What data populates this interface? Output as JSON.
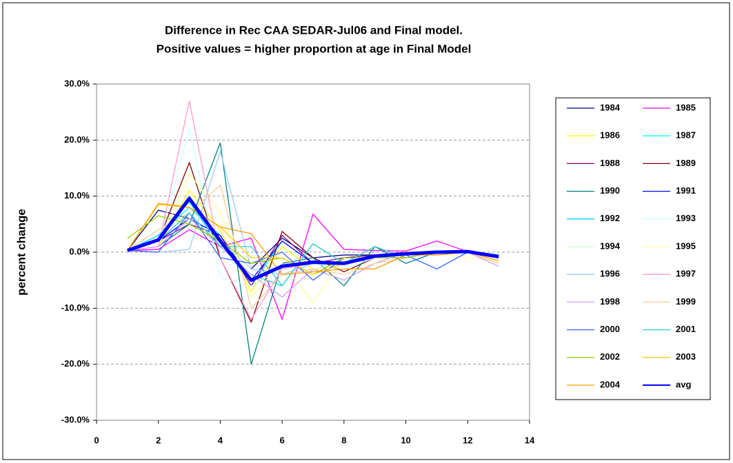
{
  "chart_data": {
    "type": "line",
    "title": "Difference in Rec CAA SEDAR-Jul06 and Final model.",
    "subtitle": "Positive values = higher proportion at age in Final Model",
    "y_label": "percent change",
    "x": [
      1,
      2,
      3,
      4,
      5,
      6,
      7,
      8,
      9,
      10,
      11,
      12,
      13
    ],
    "xlim": [
      0,
      14
    ],
    "xticks": [
      0,
      2,
      4,
      6,
      8,
      10,
      12,
      14
    ],
    "ylim": [
      -30,
      30
    ],
    "yticks": [
      {
        "value": -30,
        "label": "-30.0%"
      },
      {
        "value": -20,
        "label": "-20.0%"
      },
      {
        "value": -10,
        "label": "-10.0%"
      },
      {
        "value": 0,
        "label": "0.0%"
      },
      {
        "value": 10,
        "label": "10.0%"
      },
      {
        "value": 20,
        "label": "20.0%"
      },
      {
        "value": 30,
        "label": "30.0%"
      }
    ],
    "grid": true,
    "legend": "right",
    "series": [
      {
        "name": "1984",
        "color": "#000080",
        "values": [
          0.3,
          7.5,
          6,
          2,
          -3,
          2.5,
          -1,
          -0.5,
          -0.5,
          0,
          0,
          0.1,
          -0.5
        ]
      },
      {
        "name": "1985",
        "color": "#FF00FF",
        "values": [
          0.3,
          0.5,
          4,
          1,
          2.5,
          -12,
          6.8,
          0.5,
          0.3,
          0.2,
          2,
          0.1,
          -1
        ]
      },
      {
        "name": "1986",
        "color": "#FFFF00",
        "values": [
          0.3,
          1,
          11,
          4,
          -7,
          1,
          -3,
          -2,
          -1,
          0,
          0,
          0,
          -1
        ]
      },
      {
        "name": "1987",
        "color": "#00FFFF",
        "values": [
          0.3,
          3,
          8,
          3,
          -6,
          2,
          -2,
          -2,
          -1,
          0,
          0,
          0,
          -1
        ]
      },
      {
        "name": "1988",
        "color": "#800080",
        "values": [
          0.3,
          2,
          5,
          3,
          -6,
          3,
          -2,
          -1,
          -0.5,
          0,
          0,
          0,
          -1
        ]
      },
      {
        "name": "1989",
        "color": "#800000",
        "values": [
          0.3,
          2,
          16,
          -1,
          -12.5,
          3.7,
          -1,
          -3.5,
          -1,
          0,
          0,
          0,
          -1
        ]
      },
      {
        "name": "1990",
        "color": "#008080",
        "values": [
          0.3,
          1,
          5,
          19.5,
          -20,
          -2,
          -1,
          -6,
          1,
          -2,
          0,
          0,
          -1
        ]
      },
      {
        "name": "1991",
        "color": "#0000FF",
        "values": [
          0.3,
          2,
          6,
          3,
          -5,
          2,
          -2,
          -2,
          -1,
          0,
          0,
          0,
          -1
        ]
      },
      {
        "name": "1992",
        "color": "#00CCFF",
        "values": [
          0.3,
          3,
          9,
          1,
          -4,
          -6,
          1.5,
          -2,
          -1,
          0,
          0,
          0,
          -1
        ]
      },
      {
        "name": "1993",
        "color": "#CCFFFF",
        "values": [
          0.3,
          1,
          22,
          -4.5,
          -6,
          -3,
          -2,
          -3,
          -1,
          0,
          0,
          0,
          -1
        ]
      },
      {
        "name": "1994",
        "color": "#CCFFCC",
        "values": [
          0.3,
          4,
          6,
          2,
          -3,
          -4,
          -3,
          -2,
          -1,
          0,
          0,
          0,
          -1
        ]
      },
      {
        "name": "1995",
        "color": "#FFFF99",
        "values": [
          0.3,
          1,
          14,
          7,
          -8,
          -2,
          -9,
          -1,
          -1,
          0,
          0,
          -1,
          -1.5
        ]
      },
      {
        "name": "1996",
        "color": "#99CCFF",
        "values": [
          0.3,
          0,
          0.5,
          18,
          -3,
          -4,
          -2,
          -2,
          -1,
          0,
          0,
          0,
          -1
        ]
      },
      {
        "name": "1997",
        "color": "#FF99CC",
        "values": [
          0.3,
          1,
          27,
          -1,
          -12,
          -3,
          -2,
          -2,
          -1,
          0,
          0,
          0,
          -1
        ]
      },
      {
        "name": "1998",
        "color": "#CC99FF",
        "values": [
          0.3,
          1,
          6,
          1,
          -4,
          -8,
          -3,
          -5,
          -2,
          0,
          0,
          0,
          -2.5
        ]
      },
      {
        "name": "1999",
        "color": "#FFCC99",
        "values": [
          0.3,
          4,
          7,
          12,
          -10,
          -4,
          -3,
          -4,
          -2,
          -1,
          0,
          0,
          -2
        ]
      },
      {
        "name": "2000",
        "color": "#3366FF",
        "values": [
          0.3,
          0,
          7,
          -1,
          -2,
          0,
          -5,
          -1,
          -1,
          -0.5,
          -3,
          0,
          -1
        ]
      },
      {
        "name": "2001",
        "color": "#33CCCC",
        "values": [
          0.3,
          2,
          7,
          1,
          1,
          -6,
          1.5,
          -2,
          1,
          -1,
          0,
          0,
          -0.5
        ]
      },
      {
        "name": "2002",
        "color": "#99CC00",
        "values": [
          2.5,
          6.5,
          5,
          2,
          -2,
          -1,
          -4,
          -1,
          -1,
          -1,
          0,
          0,
          -0.5
        ]
      },
      {
        "name": "2003",
        "color": "#FFCC00",
        "values": [
          0.3,
          8.5,
          8,
          4.5,
          -1,
          -1,
          -4,
          -2,
          -1,
          0,
          0,
          0,
          -1
        ]
      },
      {
        "name": "2004",
        "color": "#FF9900",
        "values": [
          0.3,
          8.7,
          8,
          4.5,
          3.3,
          -4,
          -3.5,
          -3,
          -3,
          -0.5,
          -0.5,
          0,
          -1.5
        ]
      },
      {
        "name": "avg",
        "color": "#0000FF",
        "width": 5,
        "values": [
          0.3,
          2.2,
          9.6,
          2,
          -5,
          -2.5,
          -1.8,
          -2,
          -0.7,
          -0.3,
          0,
          0.1,
          -0.8
        ]
      }
    ]
  }
}
